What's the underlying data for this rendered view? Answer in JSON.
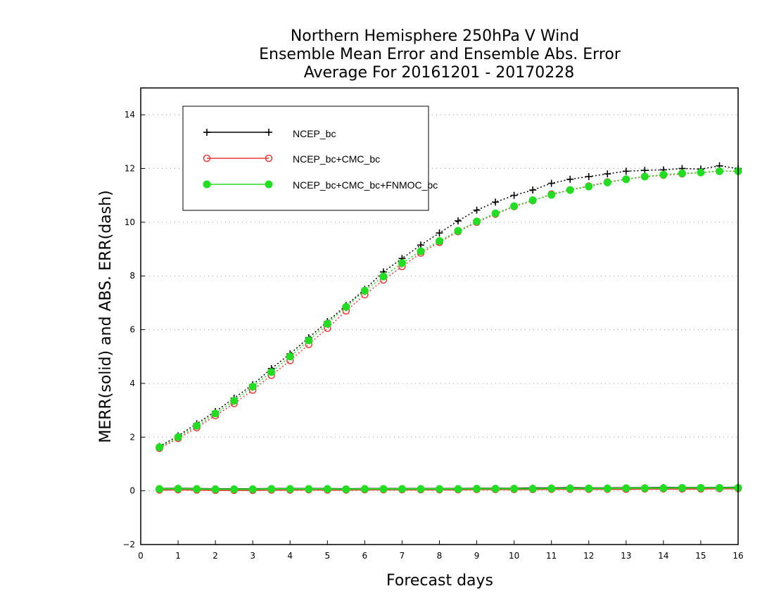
{
  "chart_data": {
    "type": "line",
    "title_lines": [
      "Northern Hemisphere 250hPa V Wind",
      "Ensemble Mean Error and Ensemble Abs. Error",
      "Average For 20161201 - 20170228"
    ],
    "xlabel": "Forecast days",
    "ylabel": "MERR(solid) and ABS. ERR(dash)",
    "xlim": [
      0,
      16
    ],
    "ylim": [
      -2,
      15
    ],
    "x_ticks": [
      "0",
      "1",
      "2",
      "3",
      "4",
      "5",
      "6",
      "7",
      "8",
      "9",
      "10",
      "11",
      "12",
      "13",
      "14",
      "15",
      "16"
    ],
    "y_ticks": [
      "−2",
      "0",
      "2",
      "4",
      "6",
      "8",
      "10",
      "12",
      "14"
    ],
    "grid": "horizontal dotted",
    "legend_position": "upper-left",
    "x": [
      0.5,
      1,
      1.5,
      2,
      2.5,
      3,
      3.5,
      4,
      4.5,
      5,
      5.5,
      6,
      6.5,
      7,
      7.5,
      8,
      8.5,
      9,
      9.5,
      10,
      10.5,
      11,
      11.5,
      12,
      12.5,
      13,
      13.5,
      14,
      14.5,
      15,
      15.5,
      16
    ],
    "series": [
      {
        "name": "NCEP_bc",
        "color": "#000000",
        "marker": "plus",
        "abs_err": [
          1.65,
          2.05,
          2.5,
          2.95,
          3.45,
          3.95,
          4.55,
          5.1,
          5.7,
          6.3,
          6.9,
          7.5,
          8.15,
          8.65,
          9.15,
          9.6,
          10.05,
          10.45,
          10.75,
          11.0,
          11.2,
          11.45,
          11.6,
          11.7,
          11.8,
          11.9,
          11.93,
          11.95,
          12.0,
          11.98,
          12.1,
          12.0
        ],
        "merr": [
          0.08,
          0.09,
          0.08,
          0.07,
          0.07,
          0.07,
          0.08,
          0.08,
          0.08,
          0.08,
          0.07,
          0.08,
          0.08,
          0.08,
          0.08,
          0.08,
          0.08,
          0.09,
          0.09,
          0.09,
          0.1,
          0.1,
          0.11,
          0.1,
          0.1,
          0.11,
          0.11,
          0.12,
          0.12,
          0.12,
          0.12,
          0.13
        ]
      },
      {
        "name": "NCEP_bc+CMC_bc",
        "color": "#e83b3b",
        "marker": "open-circle",
        "abs_err": [
          1.58,
          1.95,
          2.35,
          2.8,
          3.25,
          3.75,
          4.3,
          4.85,
          5.45,
          6.05,
          6.7,
          7.3,
          7.85,
          8.35,
          8.85,
          9.25,
          9.65,
          10.0,
          10.3,
          10.58,
          10.8,
          11.05,
          11.2,
          11.35,
          11.5,
          11.6,
          11.7,
          11.75,
          11.8,
          11.85,
          11.9,
          11.9
        ],
        "merr": [
          0.03,
          0.04,
          0.03,
          0.02,
          0.02,
          0.02,
          0.03,
          0.03,
          0.04,
          0.03,
          0.03,
          0.04,
          0.04,
          0.04,
          0.04,
          0.04,
          0.04,
          0.05,
          0.05,
          0.05,
          0.05,
          0.06,
          0.06,
          0.06,
          0.06,
          0.06,
          0.07,
          0.07,
          0.07,
          0.07,
          0.08,
          0.08
        ]
      },
      {
        "name": "NCEP_bc+CMC_bc+FNMOC_bc",
        "color": "#22dd22",
        "marker": "filled-circle",
        "abs_err": [
          1.62,
          2.0,
          2.42,
          2.88,
          3.35,
          3.88,
          4.42,
          5.0,
          5.6,
          6.22,
          6.85,
          7.45,
          7.98,
          8.48,
          8.92,
          9.3,
          9.68,
          10.03,
          10.33,
          10.6,
          10.82,
          11.02,
          11.2,
          11.33,
          11.48,
          11.6,
          11.7,
          11.77,
          11.82,
          11.85,
          11.9,
          11.9
        ],
        "merr": [
          0.07,
          0.08,
          0.07,
          0.06,
          0.06,
          0.06,
          0.07,
          0.07,
          0.07,
          0.07,
          0.06,
          0.07,
          0.07,
          0.07,
          0.07,
          0.07,
          0.07,
          0.08,
          0.08,
          0.08,
          0.08,
          0.09,
          0.09,
          0.09,
          0.09,
          0.1,
          0.1,
          0.1,
          0.11,
          0.11,
          0.11,
          0.11
        ]
      }
    ]
  }
}
